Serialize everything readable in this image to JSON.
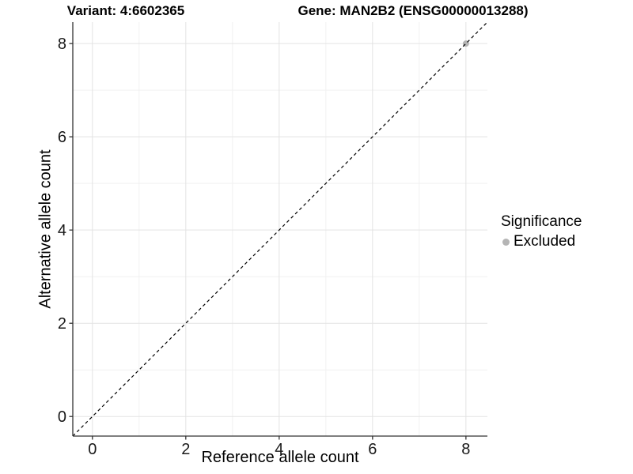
{
  "titles": {
    "left": "Variant: 4:6602365",
    "right": "Gene: MAN2B2 (ENSG00000013288)"
  },
  "chart_data": {
    "type": "scatter",
    "xlabel": "Reference allele count",
    "ylabel": "Alternative allele count",
    "xlim": [
      -0.42,
      8.46
    ],
    "ylim": [
      -0.42,
      8.46
    ],
    "x_ticks": [
      0,
      2,
      4,
      6,
      8
    ],
    "y_ticks": [
      0,
      2,
      4,
      6,
      8
    ],
    "x_minor_ticks": [
      1,
      3,
      5,
      7
    ],
    "y_minor_ticks": [
      1,
      3,
      5,
      7
    ],
    "grid": "on",
    "identity_line": {
      "slope": 1,
      "intercept": 0,
      "style": "dashed",
      "color": "#000000"
    },
    "points": [
      {
        "x": 8,
        "y": 8,
        "significance": "Excluded"
      }
    ],
    "legend": {
      "title": "Significance",
      "position": "right",
      "entries": [
        {
          "label": "Excluded",
          "color": "#b5b5b5"
        }
      ]
    },
    "colors": {
      "background": "#ffffff",
      "major_grid": "#e3e3e3",
      "minor_grid": "#f1f1f1",
      "axis_line": "#333333",
      "tick_label": "#1a1a1a",
      "point_excluded": "#b5b5b5"
    }
  }
}
